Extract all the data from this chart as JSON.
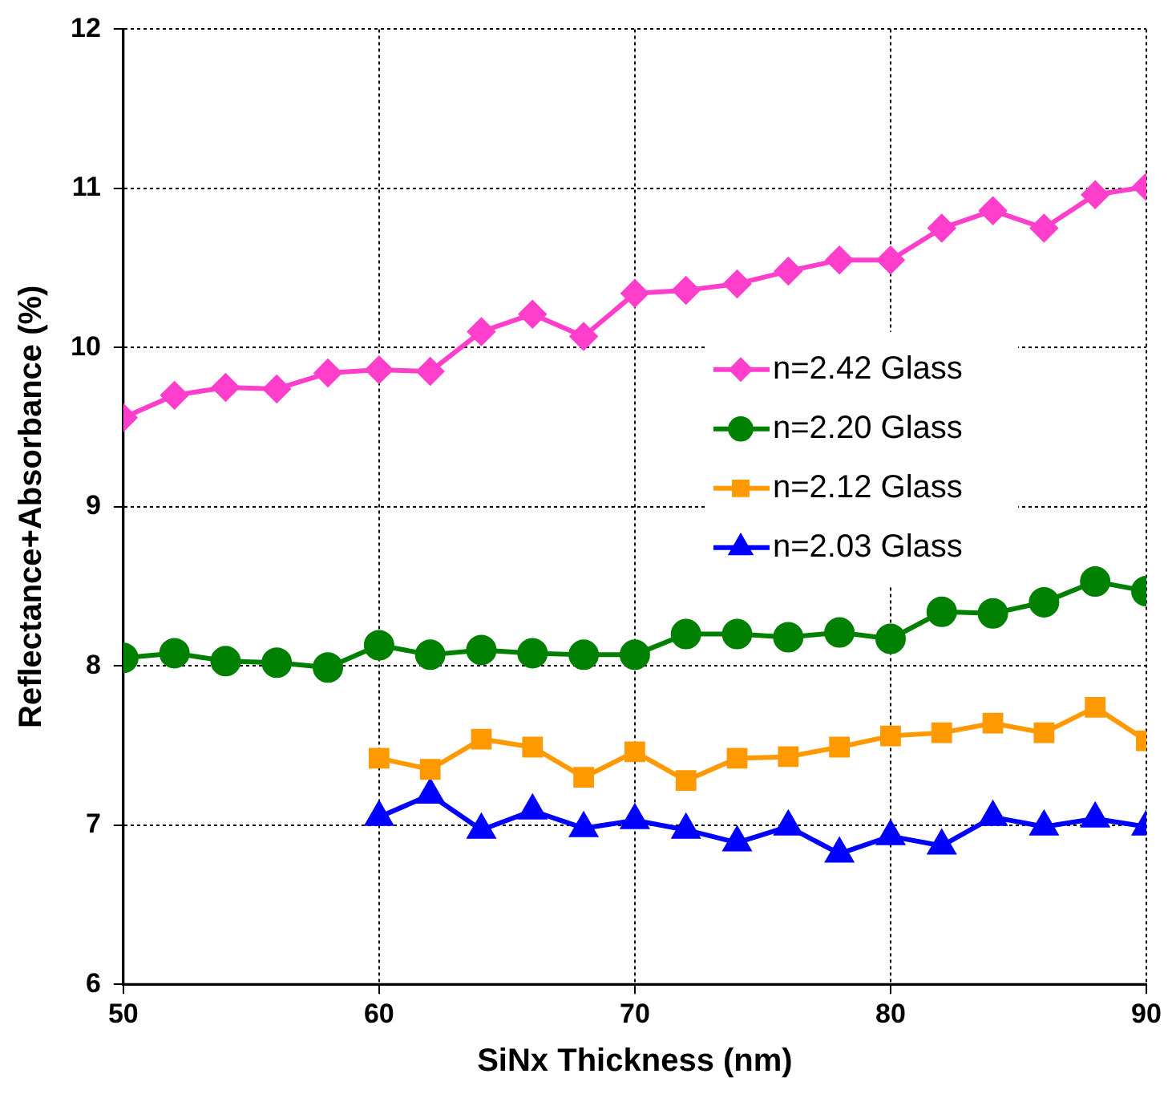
{
  "chart_data": {
    "type": "line",
    "xlabel": "SiNx Thickness (nm)",
    "ylabel": "Reflectance+Absorbance (%)",
    "xlim": [
      50,
      90
    ],
    "xticks": [
      50,
      60,
      70,
      80,
      90
    ],
    "ylim": [
      6,
      12
    ],
    "yticks": [
      6,
      7,
      8,
      9,
      10,
      11,
      12
    ],
    "grid": true,
    "legend": "right",
    "line_style": "solid",
    "series": [
      {
        "name": "n=2.42 Glass",
        "color": "#ff3ecc",
        "marker": "diamond",
        "x": [
          50,
          52,
          54,
          56,
          58,
          60,
          62,
          64,
          66,
          68,
          70,
          72,
          74,
          76,
          78,
          80,
          82,
          84,
          86,
          88,
          90
        ],
        "values": [
          9.56,
          9.7,
          9.75,
          9.74,
          9.84,
          9.86,
          9.85,
          10.1,
          10.21,
          10.07,
          10.34,
          10.36,
          10.4,
          10.48,
          10.55,
          10.55,
          10.75,
          10.86,
          10.75,
          10.96,
          11.01
        ]
      },
      {
        "name": "n=2.20 Glass",
        "color": "#008000",
        "marker": "circle",
        "x": [
          50,
          52,
          54,
          56,
          58,
          60,
          62,
          64,
          66,
          68,
          70,
          72,
          74,
          76,
          78,
          80,
          82,
          84,
          86,
          88,
          90
        ],
        "values": [
          8.05,
          8.08,
          8.03,
          8.02,
          7.99,
          8.13,
          8.07,
          8.1,
          8.08,
          8.07,
          8.07,
          8.2,
          8.2,
          8.18,
          8.21,
          8.17,
          8.34,
          8.33,
          8.4,
          8.53,
          8.47
        ]
      },
      {
        "name": "n=2.12 Glass",
        "color": "#ff9900",
        "marker": "square",
        "x": [
          60,
          62,
          64,
          66,
          68,
          70,
          72,
          74,
          76,
          78,
          80,
          82,
          84,
          86,
          88,
          90
        ],
        "values": [
          7.42,
          7.35,
          7.54,
          7.49,
          7.3,
          7.46,
          7.28,
          7.42,
          7.43,
          7.49,
          7.56,
          7.58,
          7.64,
          7.58,
          7.74,
          7.53
        ]
      },
      {
        "name": "n=2.03 Glass",
        "color": "#0000ff",
        "marker": "triangle",
        "x": [
          60,
          62,
          64,
          66,
          68,
          70,
          72,
          74,
          76,
          78,
          80,
          82,
          84,
          86,
          88,
          90
        ],
        "values": [
          7.05,
          7.19,
          6.97,
          7.09,
          6.98,
          7.03,
          6.97,
          6.89,
          6.99,
          6.82,
          6.93,
          6.87,
          7.05,
          6.99,
          7.04,
          6.99
        ]
      }
    ]
  }
}
